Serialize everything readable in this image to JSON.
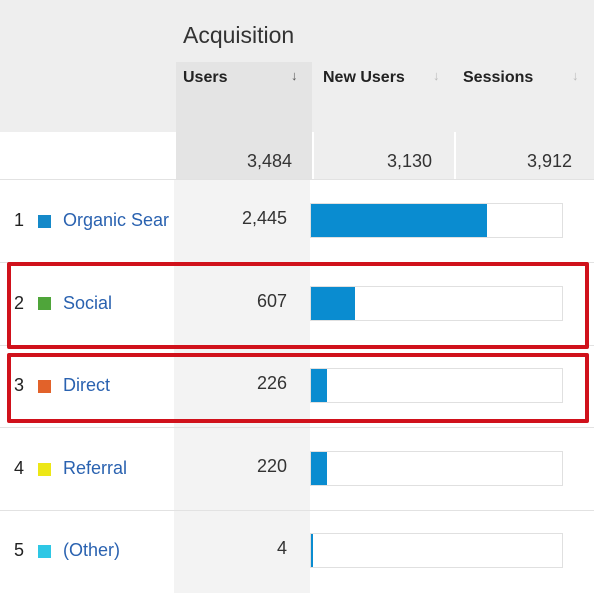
{
  "header": {
    "section_title": "Acquisition",
    "columns": [
      {
        "label": "Users",
        "sorted": true
      },
      {
        "label": "New Users",
        "sorted": false
      },
      {
        "label": "Sessions",
        "sorted": false
      }
    ],
    "sort_glyph": "↓"
  },
  "totals": {
    "users": "3,484",
    "new_users": "3,130",
    "sessions": "3,912"
  },
  "rows": [
    {
      "rank": "1",
      "name": "Organic Search",
      "display": "Organic Sear",
      "users": "2,445",
      "share": 0.702,
      "color": "#1589c9"
    },
    {
      "rank": "2",
      "name": "Social",
      "display": "Social",
      "users": "607",
      "share": 0.174,
      "color": "#4fa53a"
    },
    {
      "rank": "3",
      "name": "Direct",
      "display": "Direct",
      "users": "226",
      "share": 0.065,
      "color": "#e2622a"
    },
    {
      "rank": "4",
      "name": "Referral",
      "display": "Referral",
      "users": "220",
      "share": 0.063,
      "color": "#ede716"
    },
    {
      "rank": "5",
      "name": "(Other)",
      "display": "(Other)",
      "users": "4",
      "share": 0.001,
      "color": "#2ec7e5"
    }
  ],
  "highlight_color": "#d0111b"
}
